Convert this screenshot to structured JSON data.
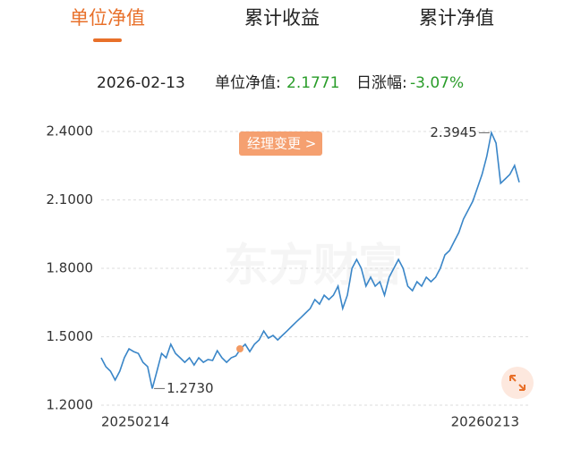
{
  "tabs": {
    "items": [
      "单位净值",
      "累计收益",
      "累计净值"
    ],
    "active": 0,
    "active_color": "#e8702a"
  },
  "info": {
    "date": "2026-02-13",
    "nav_label": "单位净值:",
    "nav": "2.1771",
    "change_label": "日涨幅:",
    "change": "-3.07%"
  },
  "chart_data": {
    "type": "line",
    "watermark": "东方财富",
    "event_label": "经理变更 >",
    "max_label": "2.3945",
    "min_label": "1.2730",
    "categories": [
      "20250214",
      null,
      null,
      null,
      null,
      null,
      null,
      null,
      null,
      null,
      null,
      null,
      null,
      null,
      null,
      null,
      null,
      null,
      null,
      null,
      null,
      null,
      null,
      null,
      null,
      null,
      null,
      null,
      null,
      null,
      null,
      null,
      null,
      null,
      null,
      null,
      null,
      null,
      null,
      null,
      null,
      null,
      null,
      null,
      null,
      null,
      null,
      null,
      null,
      null,
      null,
      null,
      null,
      null,
      null,
      null,
      null,
      null,
      null,
      null,
      null,
      null,
      null,
      null,
      null,
      null,
      null,
      null,
      null,
      null,
      null,
      null,
      null,
      null,
      null,
      null,
      null,
      null,
      null,
      null,
      null,
      null,
      null,
      null,
      null,
      null,
      null,
      null,
      null,
      null,
      "20260213"
    ],
    "series": [
      {
        "color": "#3a86c8",
        "values": [
          1.408,
          1.369,
          1.349,
          1.31,
          1.349,
          1.408,
          1.447,
          1.435,
          1.427,
          1.388,
          1.369,
          1.273,
          1.349,
          1.427,
          1.408,
          1.467,
          1.427,
          1.408,
          1.388,
          1.408,
          1.376,
          1.408,
          1.388,
          1.4,
          1.396,
          1.439,
          1.408,
          1.388,
          1.408,
          1.416,
          1.447,
          1.467,
          1.435,
          1.467,
          1.486,
          1.525,
          1.494,
          1.506,
          1.486,
          1.506,
          1.525,
          1.545,
          1.565,
          1.584,
          1.604,
          1.624,
          1.663,
          1.643,
          1.682,
          1.663,
          1.682,
          1.722,
          1.624,
          1.682,
          1.8,
          1.839,
          1.8,
          1.722,
          1.761,
          1.722,
          1.741,
          1.682,
          1.761,
          1.8,
          1.839,
          1.8,
          1.722,
          1.702,
          1.741,
          1.722,
          1.761,
          1.741,
          1.761,
          1.8,
          1.859,
          1.878,
          1.918,
          1.957,
          2.016,
          2.055,
          2.094,
          2.153,
          2.212,
          2.29,
          2.3945,
          2.349,
          2.173,
          2.192,
          2.212,
          2.251,
          2.1771
        ]
      }
    ],
    "ylim": [
      1.2,
      2.4
    ],
    "yticks": [
      {
        "value": 1.2,
        "label": "1.2000"
      },
      {
        "value": 1.5,
        "label": "1.5000"
      },
      {
        "value": 1.8,
        "label": "1.8000"
      },
      {
        "value": 2.1,
        "label": "2.1000"
      },
      {
        "value": 2.4,
        "label": "2.4000"
      }
    ],
    "grid": true
  }
}
